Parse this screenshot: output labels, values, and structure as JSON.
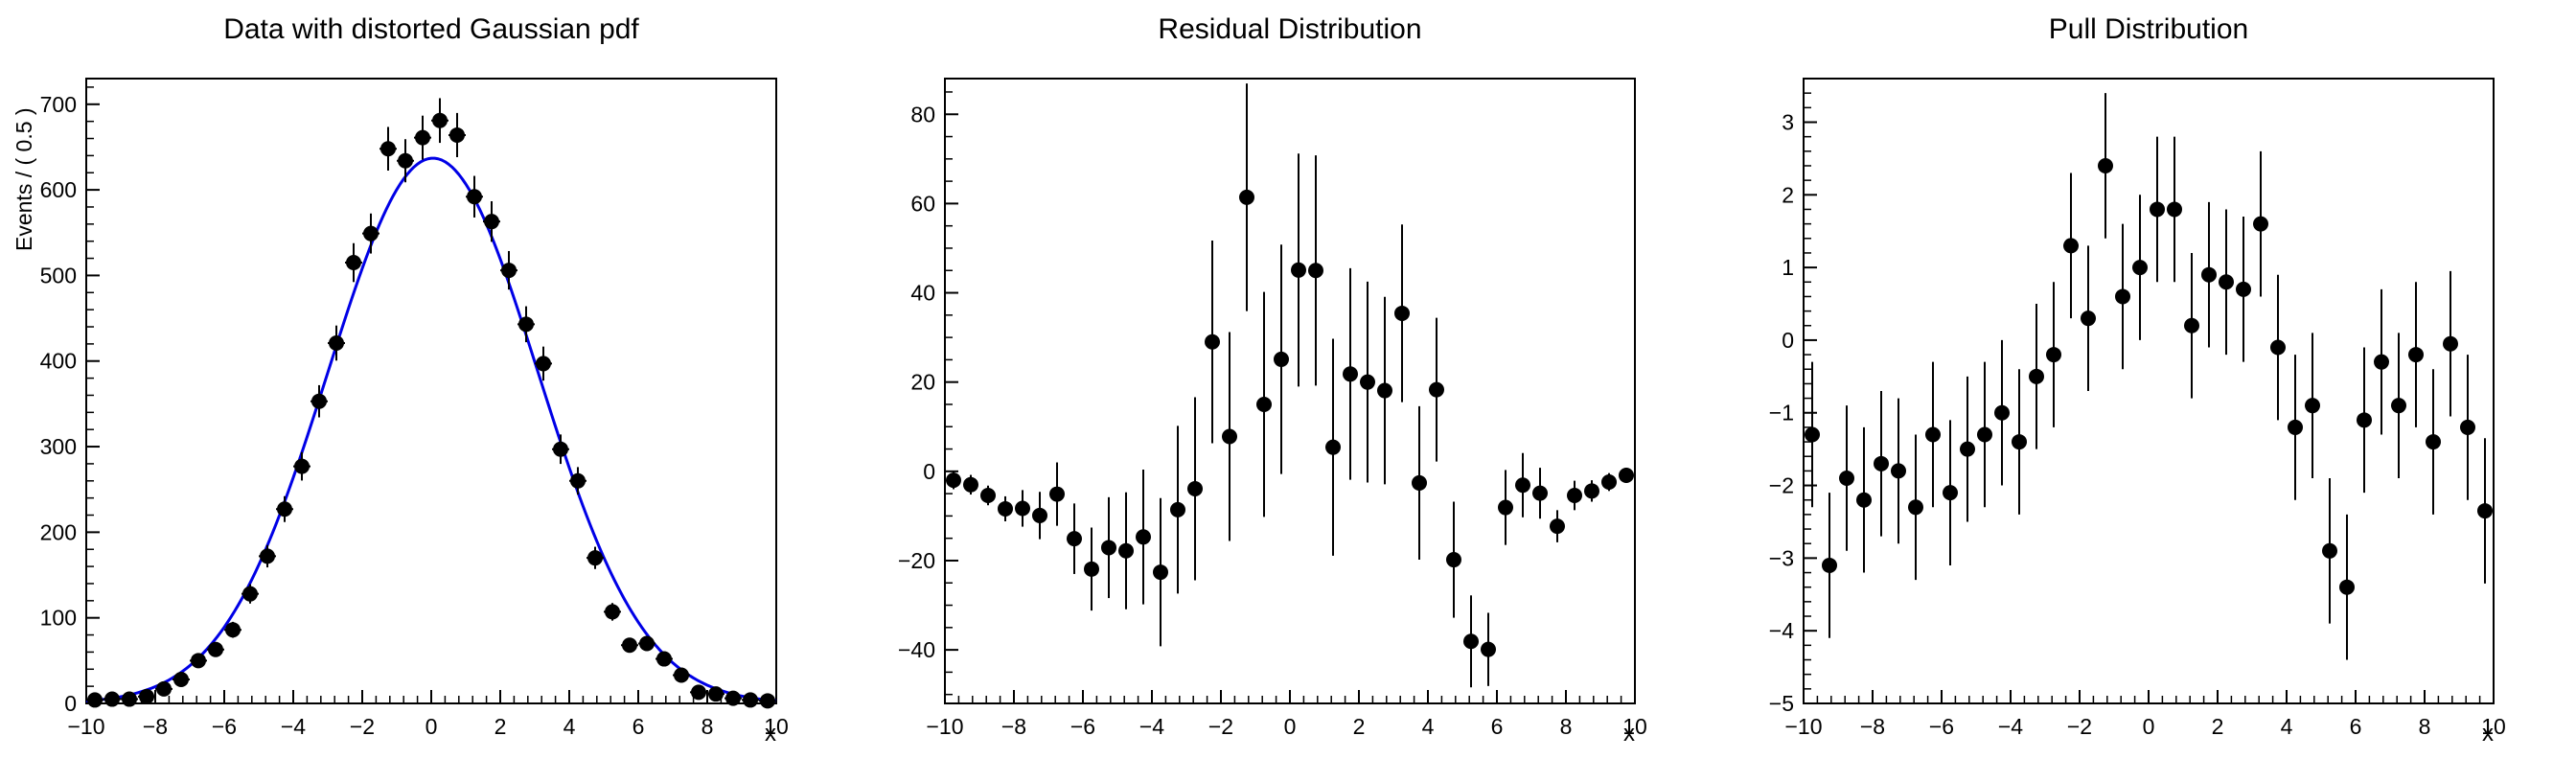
{
  "background": "#ffffff",
  "chart_data": [
    {
      "type": "scatter",
      "title": "Data with distorted Gaussian pdf",
      "xlabel": "x",
      "ylabel": "Events / ( 0.5 )",
      "xlim": [
        -10,
        10
      ],
      "ylim": [
        0,
        730
      ],
      "xticks": [
        -10,
        -8,
        -6,
        -4,
        -2,
        0,
        2,
        4,
        6,
        8,
        10
      ],
      "yticks": [
        0,
        100,
        200,
        300,
        400,
        500,
        600,
        700
      ],
      "x_minor_step": 0.4,
      "y_minor_step": 20,
      "grid": false,
      "legend": "none",
      "marker_color": "#000000",
      "xerr": 0.25,
      "x": [
        -9.75,
        -9.25,
        -8.75,
        -8.25,
        -7.75,
        -7.25,
        -6.75,
        -6.25,
        -5.75,
        -5.25,
        -4.75,
        -4.25,
        -3.75,
        -3.25,
        -2.75,
        -2.25,
        -1.75,
        -1.25,
        -0.75,
        -0.25,
        0.25,
        0.75,
        1.25,
        1.75,
        2.25,
        2.75,
        3.25,
        3.75,
        4.25,
        4.75,
        5.25,
        5.75,
        6.25,
        6.75,
        7.25,
        7.75,
        8.25,
        8.75,
        9.25,
        9.75
      ],
      "y": [
        4,
        5,
        5,
        8,
        17,
        28,
        50,
        63,
        86,
        128,
        172,
        227,
        277,
        353,
        421,
        515,
        549,
        648,
        634,
        661,
        681,
        664,
        592,
        563,
        506,
        443,
        397,
        297,
        260,
        170,
        107,
        68,
        70,
        52,
        33,
        13,
        11,
        6,
        4,
        3
      ],
      "yerr": [
        2,
        2.2,
        2.2,
        2.8,
        4.1,
        5.3,
        7.1,
        7.9,
        9.3,
        11.3,
        13.1,
        15.1,
        16.6,
        18.8,
        20.5,
        22.7,
        23.4,
        25.5,
        25.2,
        25.7,
        26.1,
        25.8,
        24.3,
        23.7,
        22.5,
        21,
        19.9,
        17.2,
        16.1,
        13,
        10.3,
        8.2,
        8.4,
        7.2,
        5.7,
        3.6,
        3.3,
        2.4,
        2,
        1.7
      ],
      "curve": {
        "name": "gaussian-fit",
        "color": "#0000e6",
        "amplitude": 637,
        "mean": 0.05,
        "sigma": 3.05
      }
    },
    {
      "type": "scatter",
      "title": "Residual Distribution",
      "xlabel": "x",
      "ylabel": "",
      "xlim": [
        -10,
        10
      ],
      "ylim": [
        -52,
        88
      ],
      "xticks": [
        -10,
        -8,
        -6,
        -4,
        -2,
        0,
        2,
        4,
        6,
        8,
        10
      ],
      "yticks": [
        -40,
        -20,
        0,
        20,
        40,
        60,
        80
      ],
      "x_minor_step": 0.4,
      "y_minor_step": 5,
      "grid": false,
      "legend": "none",
      "marker_color": "#000000",
      "xerr": 0,
      "x": [
        -9.75,
        -9.25,
        -8.75,
        -8.25,
        -7.75,
        -7.25,
        -6.75,
        -6.25,
        -5.75,
        -5.25,
        -4.75,
        -4.25,
        -3.75,
        -3.25,
        -2.75,
        -2.25,
        -1.75,
        -1.25,
        -0.75,
        -0.25,
        0.25,
        0.75,
        1.25,
        1.75,
        2.25,
        2.75,
        3.25,
        3.75,
        4.25,
        4.75,
        5.25,
        5.75,
        6.25,
        6.75,
        7.25,
        7.75,
        8.25,
        8.75,
        9.25,
        9.75
      ],
      "y": [
        -2,
        -3,
        -5.4,
        -8.4,
        -8.3,
        -9.9,
        -5.1,
        -15.1,
        -21.9,
        -17.1,
        -17.8,
        -14.7,
        -22.6,
        -8.6,
        -3.9,
        29,
        7.8,
        61.4,
        15,
        25.1,
        45.1,
        45,
        5.4,
        21.8,
        20,
        18.1,
        35.4,
        -2.6,
        18.3,
        -19.8,
        -38.1,
        -39.9,
        -8.1,
        -3.1,
        -4.9,
        -12.3,
        -5.4,
        -4.4,
        -2.4,
        -0.9
      ],
      "yerr": [
        2,
        2.2,
        2.2,
        2.8,
        4.1,
        5.3,
        7.1,
        7.9,
        9.3,
        11.3,
        13.1,
        15.1,
        16.6,
        18.8,
        20.5,
        22.7,
        23.4,
        25.5,
        25.2,
        25.7,
        26.1,
        25.8,
        24.3,
        23.7,
        22.5,
        21,
        19.9,
        17.2,
        16.1,
        13,
        10.3,
        8.2,
        8.4,
        7.2,
        5.7,
        3.6,
        3.3,
        2.4,
        2,
        1.7
      ]
    },
    {
      "type": "scatter",
      "title": "Pull Distribution",
      "xlabel": "x",
      "ylabel": "",
      "xlim": [
        -10,
        10
      ],
      "ylim": [
        -5,
        3.6
      ],
      "xticks": [
        -10,
        -8,
        -6,
        -4,
        -2,
        0,
        2,
        4,
        6,
        8,
        10
      ],
      "yticks": [
        -5,
        -4,
        -3,
        -2,
        -1,
        0,
        1,
        2,
        3
      ],
      "x_minor_step": 0.4,
      "y_minor_step": 0.2,
      "grid": false,
      "legend": "none",
      "marker_color": "#000000",
      "xerr": 0,
      "x": [
        -9.75,
        -9.25,
        -8.75,
        -8.25,
        -7.75,
        -7.25,
        -6.75,
        -6.25,
        -5.75,
        -5.25,
        -4.75,
        -4.25,
        -3.75,
        -3.25,
        -2.75,
        -2.25,
        -1.75,
        -1.25,
        -0.75,
        -0.25,
        0.25,
        0.75,
        1.25,
        1.75,
        2.25,
        2.75,
        3.25,
        3.75,
        4.25,
        4.75,
        5.25,
        5.75,
        6.25,
        6.75,
        7.25,
        7.75,
        8.25,
        8.75,
        9.25,
        9.75
      ],
      "y": [
        -1.3,
        -3.1,
        -1.9,
        -2.2,
        -1.7,
        -1.8,
        -2.3,
        -1.3,
        -2.1,
        -1.5,
        -1.3,
        -1.0,
        -1.4,
        -0.5,
        -0.2,
        1.3,
        0.3,
        2.4,
        0.6,
        1.0,
        1.8,
        1.8,
        0.2,
        0.9,
        0.8,
        0.7,
        1.6,
        -0.1,
        -1.2,
        -0.9,
        -2.9,
        -3.4,
        -1.1,
        -0.3,
        -0.9,
        -0.2,
        -1.4,
        -0.05,
        -1.2,
        -2.35
      ],
      "yerr": 1
    }
  ]
}
